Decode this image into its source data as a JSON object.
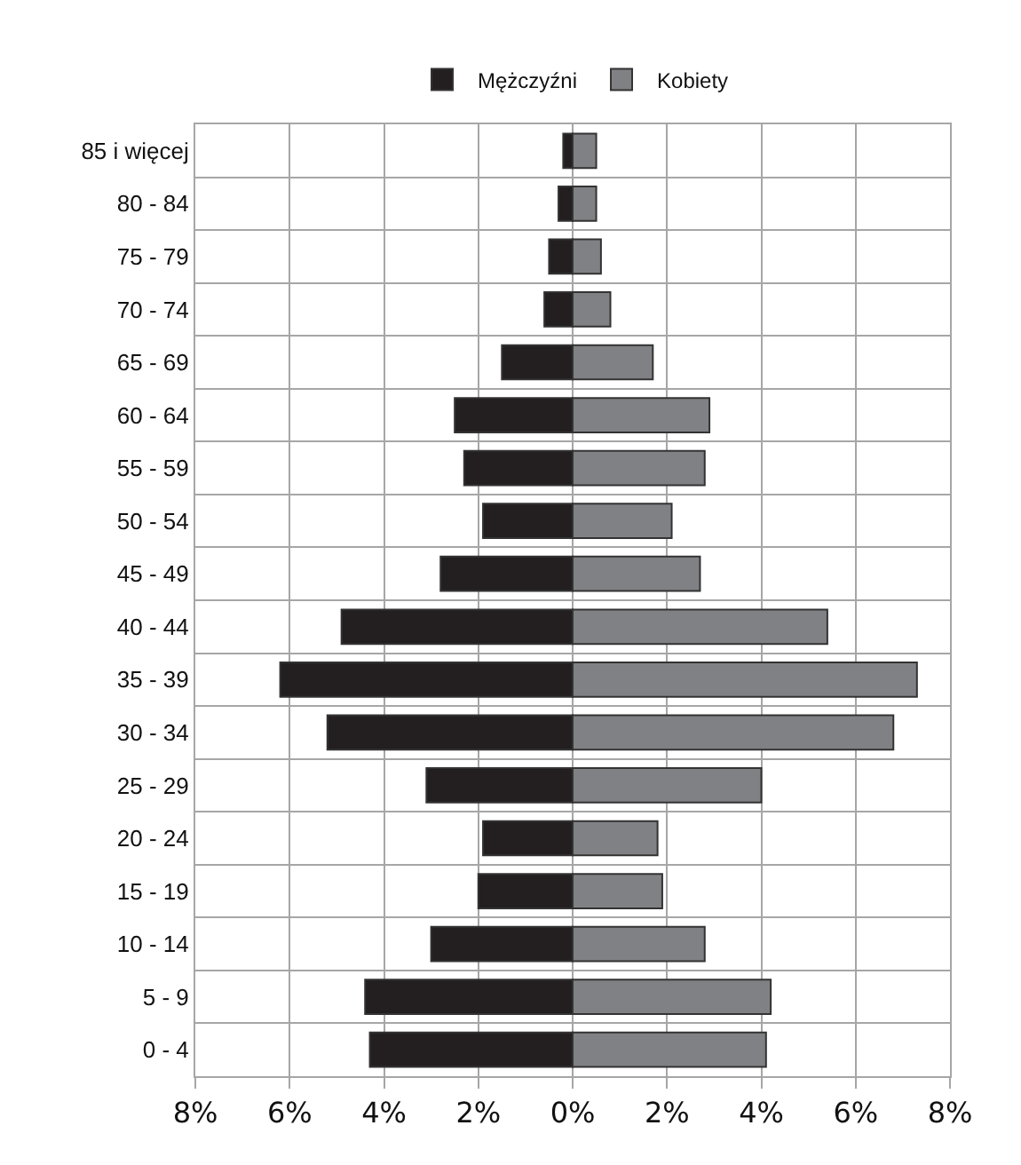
{
  "chart_data": {
    "type": "bar",
    "orientation": "horizontal",
    "stacked": true,
    "categories": [
      "85 i więcej",
      "80 - 84",
      "75 - 79",
      "70 - 74",
      "65 - 69",
      "60 - 64",
      "55 - 59",
      "50 - 54",
      "45 - 49",
      "40 - 44",
      "35 - 39",
      "30 - 34",
      "25 - 29",
      "20 - 24",
      "15 - 19",
      "10 - 14",
      "5 - 9",
      "0 - 4"
    ],
    "series": [
      {
        "name": "Mężczyźni",
        "color": "#231f20",
        "values": [
          -0.2,
          -0.3,
          -0.5,
          -0.6,
          -1.5,
          -2.5,
          -2.3,
          -1.9,
          -2.8,
          -4.9,
          -6.2,
          -5.2,
          -3.1,
          -1.9,
          -2.0,
          -3.0,
          -4.4,
          -4.3
        ]
      },
      {
        "name": "Kobiety",
        "color": "#808184",
        "values": [
          0.5,
          0.5,
          0.6,
          0.8,
          1.7,
          2.9,
          2.8,
          2.1,
          2.7,
          5.4,
          7.3,
          6.8,
          4.0,
          1.8,
          1.9,
          2.8,
          4.2,
          4.1
        ]
      }
    ],
    "xlim": [
      -8,
      8
    ],
    "xticks": [
      {
        "value": -8,
        "label": "8%"
      },
      {
        "value": -6,
        "label": "6%"
      },
      {
        "value": -4,
        "label": "4%"
      },
      {
        "value": -2,
        "label": "2%"
      },
      {
        "value": 0,
        "label": "0%"
      },
      {
        "value": 2,
        "label": "2%"
      },
      {
        "value": 4,
        "label": "4%"
      },
      {
        "value": 6,
        "label": "6%"
      },
      {
        "value": 8,
        "label": "8%"
      }
    ],
    "grid": true,
    "legend": "top"
  }
}
